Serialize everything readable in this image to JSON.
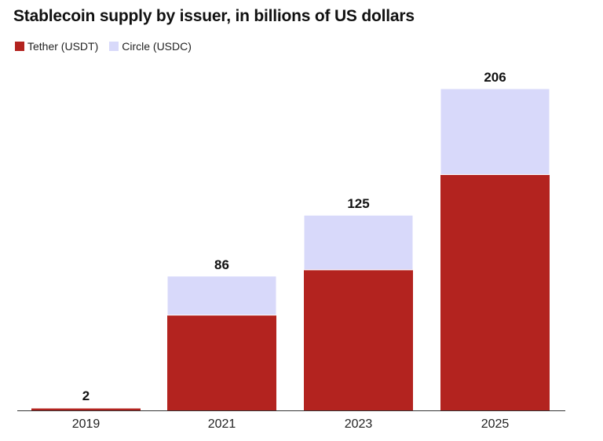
{
  "chart_data": {
    "type": "bar",
    "stacked": true,
    "title": "Stablecoin supply by issuer, in billions of US dollars",
    "categories": [
      "2019",
      "2021",
      "2023",
      "2025"
    ],
    "series": [
      {
        "name": "Tether (USDT)",
        "color": "#b3231f",
        "values": [
          1.5,
          61,
          90,
          151
        ]
      },
      {
        "name": "Circle (USDC)",
        "color": "#d8d9fa",
        "values": [
          0.5,
          25,
          35,
          55
        ]
      }
    ],
    "totals": [
      2,
      86,
      125,
      206
    ],
    "total_labels": [
      "2",
      "86",
      "125",
      "206"
    ],
    "ylim": [
      0,
      206
    ],
    "grid": false,
    "legend_position": "top-left",
    "xlabel": "",
    "ylabel": ""
  }
}
